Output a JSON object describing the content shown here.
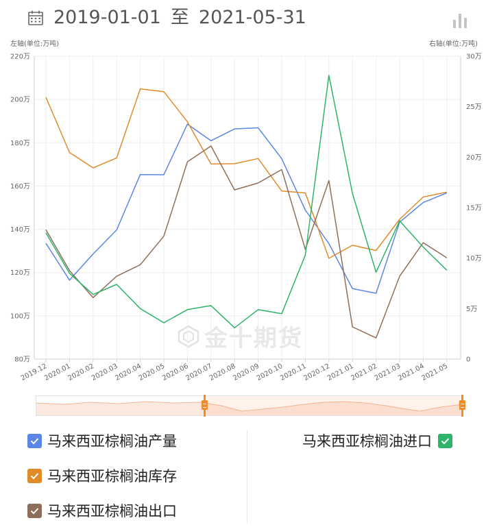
{
  "header": {
    "start_date": "2019-01-01",
    "separator": "至",
    "end_date": "2021-05-31",
    "calendar_icon": "calendar-icon",
    "chart_toggle_icon": "bar-chart-icon"
  },
  "chart_data": {
    "type": "line",
    "left_axis_label": "左轴(单位:万吨)",
    "right_axis_label": "右轴(单位:万吨)",
    "categories": [
      "2019.12",
      "2020.01",
      "2020.02",
      "2020.03",
      "2020.04",
      "2020.05",
      "2020.06",
      "2020.07",
      "2020.08",
      "2020.09",
      "2020.10",
      "2020.11",
      "2020.12",
      "2021.01",
      "2021.02",
      "2021.03",
      "2021.04",
      "2021.05"
    ],
    "left_axis": {
      "min": 80,
      "max": 220,
      "step": 20,
      "tick_labels": [
        "80万",
        "100万",
        "120万",
        "140万",
        "160万",
        "180万",
        "200万",
        "220万"
      ]
    },
    "right_axis": {
      "min": 0,
      "max": 30,
      "step": 5,
      "tick_labels": [
        "0",
        "5万",
        "10万",
        "15万",
        "20万",
        "25万",
        "30万"
      ]
    },
    "grid": true,
    "series": [
      {
        "name": "马来西亚棕榈油产量",
        "axis": "left",
        "color": "#5b86e5",
        "values": [
          133.5,
          116.5,
          128.6,
          139.7,
          165.3,
          165.2,
          188.6,
          180.9,
          186.4,
          186.9,
          172.6,
          148.9,
          133.4,
          112.6,
          110.4,
          143.3,
          152.4,
          156.8
        ]
      },
      {
        "name": "马来西亚棕榈油库存",
        "axis": "left",
        "color": "#e08b28",
        "values": [
          201,
          175.5,
          168.4,
          173,
          204.9,
          203.6,
          189.7,
          170.2,
          170.3,
          172.7,
          157.7,
          156.8,
          126.6,
          132.6,
          130.2,
          144.6,
          154.9,
          157.2
        ]
      },
      {
        "name": "马来西亚棕榈油出口",
        "axis": "left",
        "color": "#8d6e5b",
        "values": [
          139.8,
          120.9,
          108.4,
          118.3,
          123.6,
          136.8,
          171.2,
          178.5,
          158.2,
          161.4,
          167.6,
          130.7,
          162.5,
          94.9,
          89.8,
          118.3,
          133.8,
          126.8
        ]
      },
      {
        "name": "马来西亚棕榈油进口",
        "axis": "right",
        "color": "#2db36a",
        "values": [
          12.5,
          8.5,
          6.4,
          7.4,
          5.0,
          3.6,
          4.9,
          5.3,
          3.1,
          4.9,
          4.5,
          10.3,
          28.1,
          16.4,
          8.6,
          13.7,
          11.1,
          8.8
        ]
      }
    ],
    "legend_position": "bottom"
  },
  "slider": {
    "range_label": ""
  },
  "watermark": {
    "text": "金十期货",
    "logo_icon": "jin10-logo-icon"
  }
}
